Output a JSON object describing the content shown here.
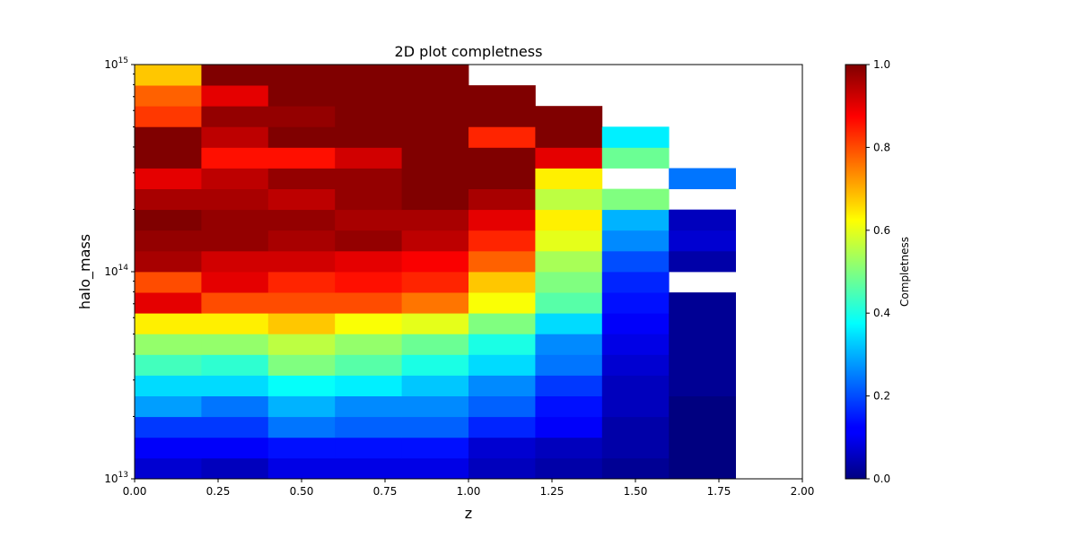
{
  "chart_data": {
    "type": "heatmap",
    "title": "2D plot completness",
    "xlabel": "z",
    "ylabel": "halo_mass",
    "xlim": [
      0,
      2
    ],
    "ylim": [
      10000000000000.0,
      1000000000000000.0
    ],
    "yscale": "log",
    "x_ticks": [
      "0.00",
      "0.25",
      "0.50",
      "0.75",
      "1.00",
      "1.25",
      "1.50",
      "1.75",
      "2.00"
    ],
    "y_ticks": [
      {
        "value": 10000000000000.0,
        "mantissa": "10",
        "exponent": "13"
      },
      {
        "value": 100000000000000.0,
        "mantissa": "10",
        "exponent": "14"
      },
      {
        "value": 1000000000000000.0,
        "mantissa": "10",
        "exponent": "15"
      }
    ],
    "x_bin_edges": [
      0,
      0.2,
      0.4,
      0.6,
      0.8,
      1.0,
      1.2,
      1.4,
      1.6,
      1.8
    ],
    "log10_mass_bin_edges": [
      13.0,
      13.1,
      13.2,
      13.3,
      13.4,
      13.5,
      13.6,
      13.7,
      13.8,
      13.9,
      14.0,
      14.1,
      14.2,
      14.3,
      14.4,
      14.5,
      14.6,
      14.7,
      14.8,
      14.9,
      15.0
    ],
    "colorbar": {
      "label": "Completness",
      "colormap": "jet",
      "range": [
        0,
        1
      ],
      "ticks": [
        "0.0",
        "0.2",
        "0.4",
        "0.6",
        "0.8",
        "1.0"
      ]
    },
    "grid": false,
    "values": [
      [
        0.08,
        0.06,
        0.1,
        0.1,
        0.1,
        0.06,
        0.04,
        0.02,
        0.0
      ],
      [
        0.12,
        0.12,
        0.14,
        0.14,
        0.14,
        0.08,
        0.06,
        0.04,
        0.0
      ],
      [
        0.18,
        0.18,
        0.24,
        0.22,
        0.22,
        0.16,
        0.12,
        0.04,
        0.0
      ],
      [
        0.28,
        0.24,
        0.3,
        0.26,
        0.26,
        0.22,
        0.14,
        0.06,
        0.0
      ],
      [
        0.34,
        0.34,
        0.38,
        0.36,
        0.32,
        0.26,
        0.18,
        0.06,
        0.02
      ],
      [
        0.44,
        0.42,
        0.5,
        0.46,
        0.4,
        0.34,
        0.24,
        0.08,
        0.02
      ],
      [
        0.52,
        0.52,
        0.56,
        0.52,
        0.48,
        0.4,
        0.26,
        0.1,
        0.02
      ],
      [
        0.64,
        0.64,
        0.68,
        0.62,
        0.6,
        0.5,
        0.34,
        0.12,
        0.02
      ],
      [
        0.9,
        0.8,
        0.8,
        0.8,
        0.76,
        0.62,
        0.46,
        0.14,
        0.02
      ],
      [
        0.8,
        0.9,
        0.84,
        0.86,
        0.84,
        0.68,
        0.5,
        0.16,
        null
      ],
      [
        0.96,
        0.92,
        0.92,
        0.9,
        0.88,
        0.78,
        0.54,
        0.2,
        0.04
      ],
      [
        0.98,
        0.98,
        0.96,
        0.98,
        0.94,
        0.84,
        0.6,
        0.26,
        0.08
      ],
      [
        1.0,
        0.98,
        0.98,
        0.96,
        0.96,
        0.9,
        0.64,
        0.3,
        0.06
      ],
      [
        0.96,
        0.96,
        0.94,
        0.98,
        1.0,
        0.96,
        0.56,
        0.5,
        null
      ],
      [
        0.9,
        0.94,
        0.98,
        0.98,
        1.0,
        1.0,
        0.64,
        null,
        0.24
      ],
      [
        1.0,
        0.86,
        0.86,
        0.92,
        1.0,
        1.0,
        0.9,
        0.48,
        null
      ],
      [
        1.0,
        0.94,
        1.0,
        1.0,
        1.0,
        0.84,
        1.0,
        0.36,
        null
      ],
      [
        0.82,
        0.98,
        0.98,
        1.0,
        1.0,
        1.0,
        1.0,
        null,
        null
      ],
      [
        0.78,
        0.9,
        1.0,
        1.0,
        1.0,
        1.0,
        null,
        null,
        null
      ],
      [
        0.68,
        1.0,
        1.0,
        1.0,
        1.0,
        null,
        null,
        null,
        null
      ]
    ]
  }
}
